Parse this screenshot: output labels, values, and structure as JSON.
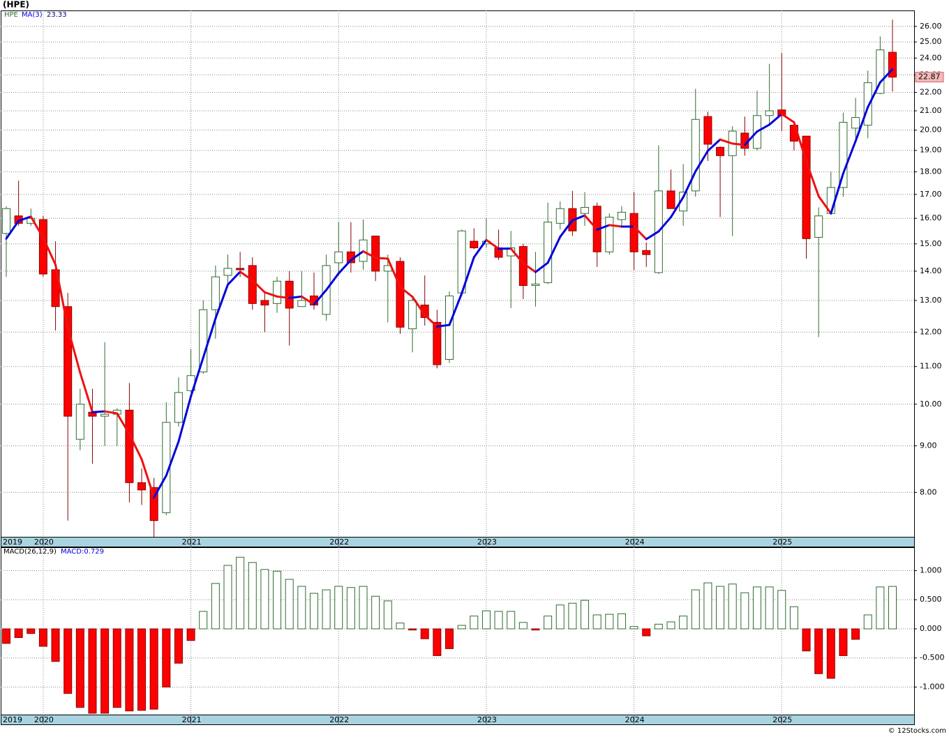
{
  "chart_data": [
    {
      "type": "candlestick",
      "title": "(HPE)",
      "categories": [
        "2019",
        null,
        null,
        "2020",
        null,
        null,
        null,
        null,
        null,
        null,
        null,
        null,
        null,
        null,
        null,
        "2021",
        null,
        null,
        null,
        null,
        null,
        null,
        null,
        null,
        null,
        null,
        null,
        "2022",
        null,
        null,
        null,
        null,
        null,
        null,
        null,
        null,
        null,
        null,
        null,
        "2023",
        null,
        null,
        null,
        null,
        null,
        null,
        null,
        null,
        null,
        null,
        null,
        "2024",
        null,
        null,
        null,
        null,
        null,
        null,
        null,
        null,
        null,
        null,
        null,
        "2025",
        null,
        null,
        null,
        null,
        null,
        null,
        null,
        null,
        null
      ],
      "series": [
        {
          "name": "HPE",
          "up_color": "#ffffff",
          "up_edge": "#2e6b2e",
          "down_color": "#ff0000",
          "down_edge": "#880000",
          "open": [
            15.4,
            16.1,
            15.8,
            15.95,
            14.05,
            12.8,
            9.15,
            9.8,
            9.7,
            9.75,
            9.85,
            8.2,
            8.1,
            7.6,
            9.55,
            10.35,
            10.85,
            12.7,
            13.85,
            14.1,
            14.2,
            13.0,
            12.9,
            13.65,
            12.8,
            13.15,
            12.55,
            14.3,
            14.7,
            14.35,
            15.3,
            14.0,
            14.35,
            12.1,
            12.85,
            12.3,
            11.2,
            13.25,
            15.1,
            15.0,
            14.85,
            14.55,
            14.9,
            13.5,
            13.6,
            15.8,
            16.4,
            16.2,
            16.5,
            14.7,
            15.95,
            16.2,
            14.75,
            13.95,
            17.15,
            16.3,
            17.15,
            20.7,
            19.15,
            18.75,
            19.85,
            19.1,
            20.75,
            21.05,
            20.25,
            19.7,
            15.25,
            16.2,
            17.3,
            20.1,
            20.25,
            21.95,
            24.35
          ],
          "high": [
            16.5,
            17.6,
            16.4,
            16.1,
            15.1,
            13.25,
            10.4,
            10.4,
            11.7,
            9.9,
            10.55,
            8.5,
            8.3,
            10.05,
            10.7,
            11.5,
            13.0,
            14.2,
            14.6,
            14.7,
            14.5,
            13.3,
            13.8,
            14.0,
            14.0,
            13.95,
            14.6,
            15.85,
            15.85,
            15.95,
            15.3,
            14.6,
            14.5,
            13.15,
            13.85,
            12.7,
            13.3,
            15.55,
            15.6,
            16.0,
            15.55,
            15.5,
            15.0,
            14.7,
            16.65,
            16.7,
            17.15,
            17.1,
            16.65,
            16.2,
            16.5,
            17.1,
            15.05,
            19.25,
            18.1,
            18.35,
            22.2,
            20.95,
            19.2,
            20.2,
            20.7,
            22.1,
            23.65,
            24.3,
            20.4,
            19.7,
            16.45,
            18.0,
            20.9,
            21.7,
            23.25,
            25.35,
            26.45
          ],
          "low": [
            13.8,
            15.7,
            15.7,
            13.8,
            12.05,
            7.45,
            8.9,
            8.6,
            9.0,
            9.0,
            7.8,
            7.75,
            7.15,
            7.55,
            9.45,
            10.3,
            10.8,
            11.8,
            13.5,
            13.8,
            12.7,
            12.0,
            12.6,
            11.6,
            12.8,
            12.7,
            12.35,
            13.85,
            13.95,
            14.05,
            13.65,
            12.3,
            11.95,
            11.4,
            12.2,
            10.95,
            11.1,
            13.15,
            14.8,
            14.85,
            14.4,
            12.75,
            13.05,
            12.8,
            13.55,
            15.55,
            15.3,
            15.7,
            14.15,
            14.6,
            15.65,
            14.05,
            14.15,
            13.9,
            16.4,
            15.7,
            16.9,
            18.5,
            16.05,
            15.3,
            18.75,
            19.0,
            20.3,
            19.95,
            19.0,
            14.45,
            11.85,
            16.2,
            16.9,
            19.6,
            19.6,
            21.9,
            22.05
          ],
          "close": [
            16.4,
            15.8,
            16.0,
            13.9,
            12.8,
            9.7,
            10.0,
            9.7,
            9.75,
            9.85,
            8.2,
            8.05,
            7.45,
            9.55,
            10.3,
            10.75,
            12.7,
            13.8,
            14.1,
            14.05,
            12.9,
            12.85,
            13.65,
            12.75,
            13.0,
            12.85,
            14.2,
            14.7,
            14.3,
            15.15,
            14.0,
            14.2,
            12.15,
            13.0,
            12.45,
            11.05,
            13.15,
            15.5,
            14.85,
            15.1,
            14.5,
            14.85,
            13.5,
            13.55,
            15.85,
            16.4,
            15.5,
            16.45,
            14.7,
            16.05,
            16.25,
            14.7,
            14.6,
            17.15,
            16.4,
            17.1,
            20.55,
            19.3,
            18.75,
            19.95,
            19.1,
            20.75,
            21.0,
            20.75,
            19.45,
            15.2,
            16.1,
            17.3,
            20.4,
            20.65,
            22.55,
            24.5,
            22.87
          ]
        },
        {
          "name": "MA(3)",
          "type": "line",
          "rise_color": "#0000dd",
          "fall_color": "#ee1111",
          "values": [
            15.2,
            15.9,
            16.07,
            15.23,
            14.23,
            12.13,
            10.83,
            9.8,
            9.82,
            9.77,
            9.27,
            8.7,
            7.9,
            8.35,
            9.1,
            10.2,
            11.25,
            12.42,
            13.53,
            13.98,
            13.68,
            13.27,
            13.13,
            13.08,
            13.13,
            12.87,
            13.35,
            13.92,
            14.4,
            14.72,
            14.48,
            14.45,
            13.45,
            13.12,
            12.53,
            12.17,
            12.22,
            13.23,
            14.5,
            15.15,
            14.82,
            14.82,
            14.28,
            13.97,
            14.3,
            15.27,
            15.92,
            16.12,
            15.55,
            15.73,
            15.67,
            15.67,
            15.18,
            15.48,
            16.05,
            16.88,
            18.02,
            18.98,
            19.53,
            19.33,
            19.27,
            19.93,
            20.28,
            20.83,
            20.4,
            18.47,
            16.92,
            16.2,
            17.93,
            19.45,
            21.2,
            22.57,
            23.33
          ]
        }
      ],
      "ylim": [
        7.15,
        27.07
      ],
      "log_scale": true,
      "grid": true,
      "yticks": [
        {
          "value": 8,
          "label": "8.00"
        },
        {
          "value": 9,
          "label": "9.00"
        },
        {
          "value": 10,
          "label": "10.00"
        },
        {
          "value": 11,
          "label": "11.00"
        },
        {
          "value": 12,
          "label": "12.00"
        },
        {
          "value": 13,
          "label": "13.00"
        },
        {
          "value": 14,
          "label": "14.00"
        },
        {
          "value": 15,
          "label": "15.00"
        },
        {
          "value": 16,
          "label": "16.00"
        },
        {
          "value": 17,
          "label": "17.00"
        },
        {
          "value": 18,
          "label": "18.00"
        },
        {
          "value": 19,
          "label": "19.00"
        },
        {
          "value": 20,
          "label": "20.00"
        },
        {
          "value": 21,
          "label": "21.00"
        },
        {
          "value": 22,
          "label": "22.00"
        },
        {
          "value": 23,
          "label": "23.00"
        },
        {
          "value": 24,
          "label": "24.00"
        },
        {
          "value": 25,
          "label": "25.00"
        },
        {
          "value": 26,
          "label": "26.00"
        }
      ]
    },
    {
      "type": "bar",
      "name": "MACD(26,12,9)",
      "label": "MACD:0.729",
      "categories": [
        "2019",
        null,
        null,
        "2020",
        null,
        null,
        null,
        null,
        null,
        null,
        null,
        null,
        null,
        null,
        null,
        "2021",
        null,
        null,
        null,
        null,
        null,
        null,
        null,
        null,
        null,
        null,
        null,
        "2022",
        null,
        null,
        null,
        null,
        null,
        null,
        null,
        null,
        null,
        null,
        null,
        "2023",
        null,
        null,
        null,
        null,
        null,
        null,
        null,
        null,
        null,
        null,
        null,
        "2024",
        null,
        null,
        null,
        null,
        null,
        null,
        null,
        null,
        null,
        null,
        null,
        "2025",
        null,
        null,
        null,
        null,
        null,
        null,
        null,
        null,
        null
      ],
      "values": [
        -0.25,
        -0.15,
        -0.08,
        -0.3,
        -0.56,
        -1.11,
        -1.35,
        -1.45,
        -1.45,
        -1.35,
        -1.41,
        -1.4,
        -1.38,
        -1.0,
        -0.59,
        -0.2,
        0.3,
        0.78,
        1.09,
        1.23,
        1.14,
        1.02,
        0.99,
        0.85,
        0.73,
        0.61,
        0.67,
        0.73,
        0.71,
        0.73,
        0.56,
        0.48,
        0.1,
        -0.02,
        -0.17,
        -0.46,
        -0.34,
        0.06,
        0.22,
        0.31,
        0.3,
        0.3,
        0.11,
        -0.02,
        0.22,
        0.41,
        0.44,
        0.49,
        0.24,
        0.25,
        0.26,
        0.04,
        -0.12,
        0.08,
        0.12,
        0.22,
        0.67,
        0.79,
        0.73,
        0.77,
        0.62,
        0.72,
        0.72,
        0.66,
        0.38,
        -0.38,
        -0.77,
        -0.85,
        -0.46,
        -0.18,
        0.24,
        0.72,
        0.729
      ],
      "pos_color": "#ffffff",
      "pos_edge": "#2e6b2e",
      "neg_color": "#ff0000",
      "neg_edge": "#880000",
      "ylim": [
        -1.473,
        1.401
      ],
      "grid": true,
      "yticks": [
        {
          "value": 1,
          "label": "1.000"
        },
        {
          "value": 0.5,
          "label": "0.500"
        },
        {
          "value": 0,
          "label": "0.000"
        },
        {
          "value": -0.5,
          "label": "-0.500"
        },
        {
          "value": -1,
          "label": "-1.000"
        }
      ]
    }
  ],
  "footer": "© 12Stocks.com"
}
